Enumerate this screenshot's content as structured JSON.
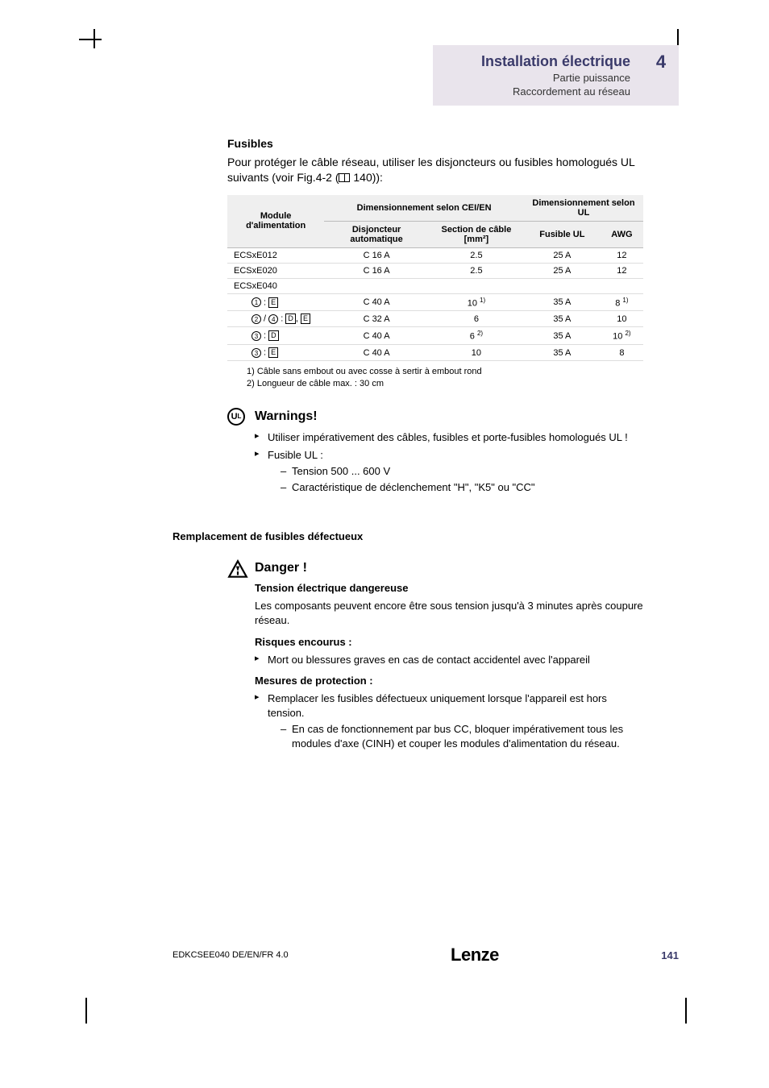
{
  "header": {
    "title": "Installation électrique",
    "sub1": "Partie puissance",
    "sub2": "Raccordement au réseau",
    "chapter": "4"
  },
  "fusibles": {
    "heading": "Fusibles",
    "intro_a": "Pour protéger le câble réseau, utiliser les disjoncteurs ou fusibles homologués UL suivants (voir Fig.4-2 (",
    "intro_b": " 140)):"
  },
  "table": {
    "head_module": "Module d'alimentation",
    "head_cei": "Dimensionnement selon CEI/EN",
    "head_ul": "Dimensionnement selon UL",
    "head_disj": "Disjoncteur automatique",
    "head_cable": "Section de câble [mm²]",
    "head_fuse": "Fusible UL",
    "head_awg": "AWG",
    "rows": [
      {
        "module": "ECSxE012",
        "disj": "C 16 A",
        "cable": "2.5",
        "fuse": "25 A",
        "awg": "12",
        "indent": false,
        "section": false,
        "sym": null
      },
      {
        "module": "ECSxE020",
        "disj": "C 16 A",
        "cable": "2.5",
        "fuse": "25 A",
        "awg": "12",
        "indent": false,
        "section": false,
        "sym": null
      },
      {
        "module": "ECSxE040",
        "disj": "",
        "cable": "",
        "fuse": "",
        "awg": "",
        "indent": false,
        "section": true,
        "sym": null
      },
      {
        "module": "",
        "disj": "C 40 A",
        "cable": "10 ",
        "cable_sup": "1)",
        "fuse": "35 A",
        "awg": "8 ",
        "awg_sup": "1)",
        "indent": true,
        "section": false,
        "sym": [
          [
            "circ",
            "1"
          ],
          "text",
          " : ",
          [
            "box",
            "E"
          ]
        ]
      },
      {
        "module": "",
        "disj": "C 32 A",
        "cable": "6",
        "fuse": "35 A",
        "awg": "10",
        "indent": true,
        "section": false,
        "sym": [
          [
            "circ",
            "2"
          ],
          "text",
          " / ",
          [
            "circ",
            "4"
          ],
          "text",
          " : ",
          [
            "box",
            "D"
          ],
          "text",
          ", ",
          [
            "box",
            "E"
          ]
        ]
      },
      {
        "module": "",
        "disj": "C 40 A",
        "cable": "6 ",
        "cable_sup": "2)",
        "fuse": "35 A",
        "awg": "10 ",
        "awg_sup": "2)",
        "indent": true,
        "section": false,
        "sym": [
          [
            "circ",
            "3"
          ],
          "text",
          " : ",
          [
            "box",
            "D"
          ]
        ]
      },
      {
        "module": "",
        "disj": "C 40 A",
        "cable": "10",
        "fuse": "35 A",
        "awg": "8",
        "indent": true,
        "section": false,
        "sym": [
          [
            "circ",
            "3"
          ],
          "text",
          " : ",
          [
            "box",
            "E"
          ]
        ]
      }
    ],
    "footnote1": "1) Câble sans embout ou avec cosse à sertir à embout rond",
    "footnote2": "2) Longueur de câble max. : 30 cm"
  },
  "warnings": {
    "title": "Warnings!",
    "items": [
      {
        "text": "Utiliser impérativement des câbles, fusibles et porte-fusibles homologués UL !",
        "sub": []
      },
      {
        "text": "Fusible UL :",
        "sub": [
          "Tension 500 ... 600 V",
          "Caractéristique de déclenchement \"H\", \"K5\" ou \"CC\""
        ]
      }
    ]
  },
  "replace_heading": "Remplacement de fusibles défectueux",
  "danger": {
    "title": "Danger !",
    "sub1": "Tension électrique dangereuse",
    "p1": "Les composants peuvent encore être sous tension jusqu'à 3 minutes après coupure réseau.",
    "sub2": "Risques encourus :",
    "risk": "Mort ou blessures graves en cas de contact accidentel avec l'appareil",
    "sub3": "Mesures de protection :",
    "measure": "Remplacer les fusibles défectueux uniquement lorsque l'appareil est hors tension.",
    "measure_sub": "En cas de fonctionnement par bus CC, bloquer impérativement tous les modules d'axe (CINH) et couper les modules d'alimentation du réseau."
  },
  "footer": {
    "left": "EDKCSEE040  DE/EN/FR  4.0",
    "center": "Lenze",
    "page": "141"
  }
}
